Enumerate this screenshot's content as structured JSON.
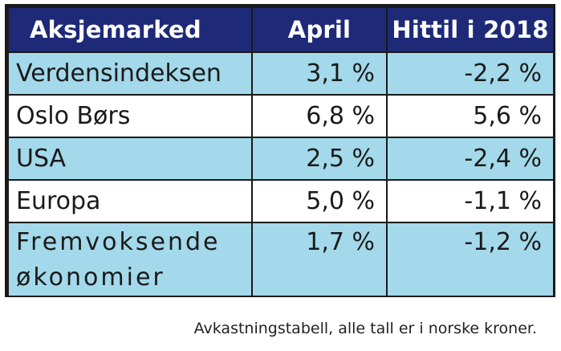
{
  "table": {
    "headers": [
      "Aksjemarked",
      "April",
      "Hittil i 2018"
    ],
    "rows": [
      {
        "market": "Verdensindeksen",
        "april": "3,1 %",
        "ytd": "-2,2 %"
      },
      {
        "market": "Oslo Børs",
        "april": "6,8 %",
        "ytd": "5,6 %"
      },
      {
        "market": "USA",
        "april": "2,5 %",
        "ytd": "-2,4 %"
      },
      {
        "market": "Europa",
        "april": "5,0 %",
        "ytd": "-1,1 %"
      },
      {
        "market": "Fremvoksende økonomier",
        "market_line1": "Fremvoksende",
        "market_line2": "økonomier",
        "april": "1,7 %",
        "ytd": "-1,2 %"
      }
    ],
    "colors": {
      "header_bg": "#1e2a78",
      "header_text": "#ffffff",
      "row_blue": "#a3d9ea",
      "row_white": "#ffffff",
      "border": "#1a1a1a"
    }
  },
  "caption": "Avkastningstabell, alle tall er i norske kroner."
}
